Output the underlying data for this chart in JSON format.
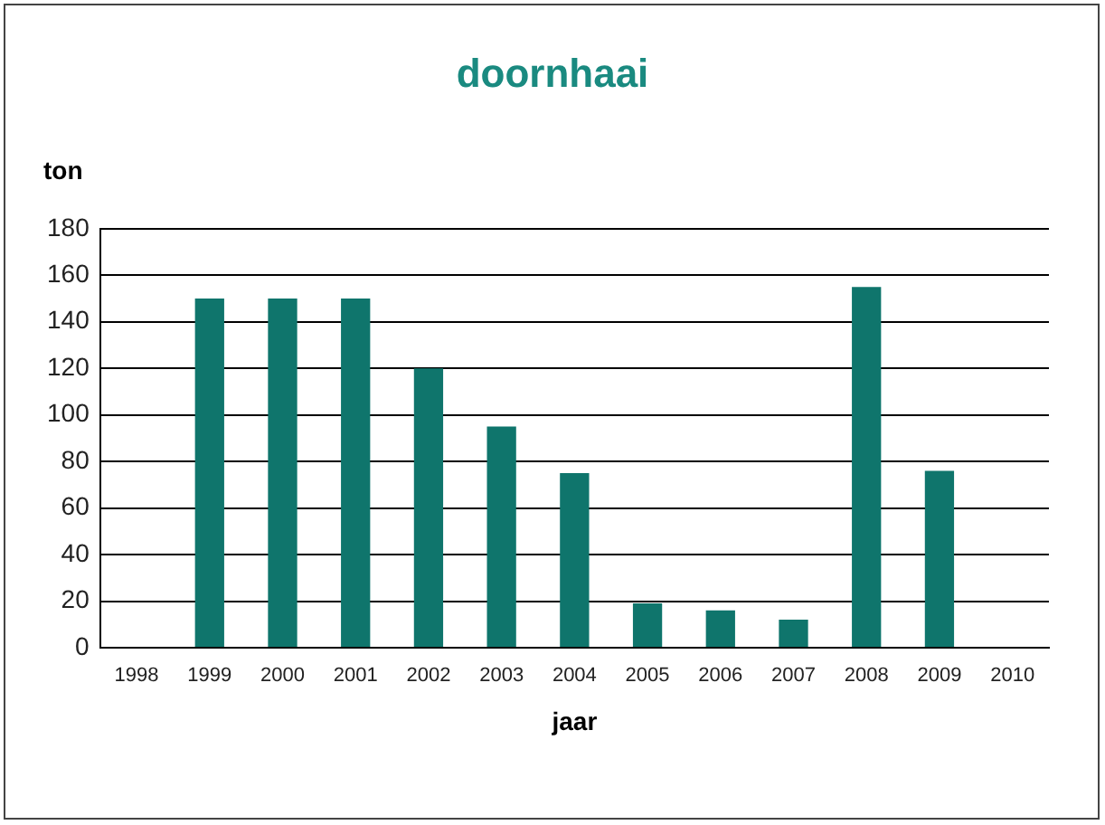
{
  "chart_data": {
    "type": "bar",
    "title": "doornhaai",
    "ylabel": "ton",
    "xlabel": "jaar",
    "categories": [
      "1998",
      "1999",
      "2000",
      "2001",
      "2002",
      "2003",
      "2004",
      "2005",
      "2006",
      "2007",
      "2008",
      "2009",
      "2010"
    ],
    "values": [
      null,
      150,
      150,
      150,
      120,
      95,
      75,
      19,
      16,
      12,
      155,
      76,
      null
    ],
    "color": "#0f756c",
    "ylim": [
      0,
      180
    ],
    "yticks": [
      0,
      20,
      40,
      60,
      80,
      100,
      120,
      140,
      160,
      180
    ],
    "grid": "y"
  }
}
